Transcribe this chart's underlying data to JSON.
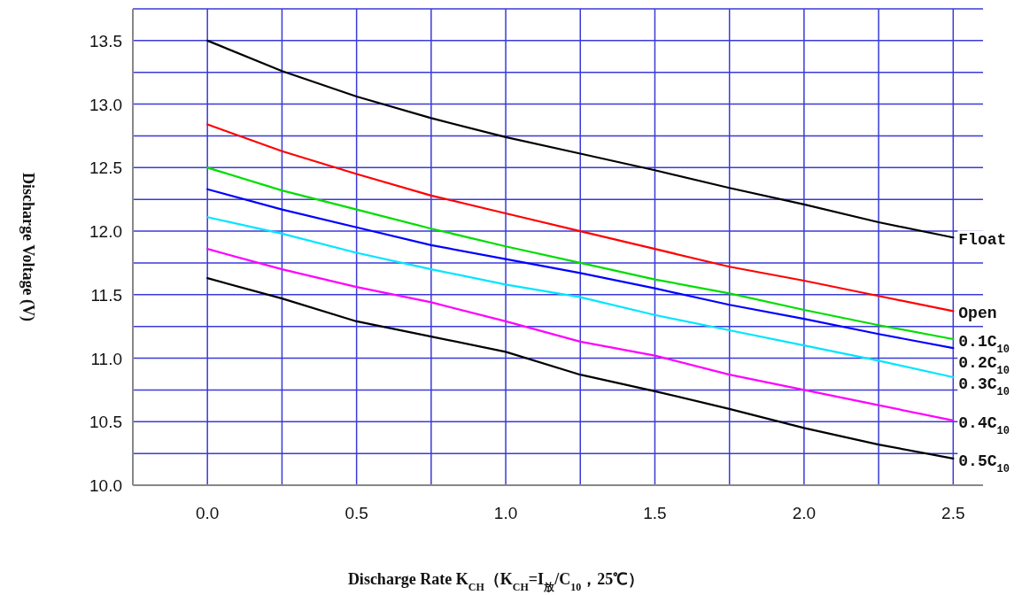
{
  "chart_data": {
    "type": "line",
    "xlabel": "Discharge Rate  K$_{CH}$（K$_{CH}$=I$_{放}$/C$_{10}$，25℃）",
    "ylabel": "Discharge Voltage  (V)",
    "x": [
      0,
      0.25,
      0.5,
      0.75,
      1.0,
      1.25,
      1.5,
      1.75,
      2.0,
      2.25,
      2.5
    ],
    "xlim": [
      -0.25,
      2.6
    ],
    "ylim": [
      10.0,
      13.75
    ],
    "xticks": [
      {
        "value": 0,
        "label": "0.0"
      },
      {
        "value": 0.25,
        "label": null
      },
      {
        "value": 0.5,
        "label": "0.5"
      },
      {
        "value": 0.75,
        "label": null
      },
      {
        "value": 1,
        "label": "1.0"
      },
      {
        "value": 1.25,
        "label": null
      },
      {
        "value": 1.5,
        "label": "1.5"
      },
      {
        "value": 1.75,
        "label": null
      },
      {
        "value": 2,
        "label": "2.0"
      },
      {
        "value": 2.25,
        "label": null
      },
      {
        "value": 2.5,
        "label": "2.5"
      }
    ],
    "yticks": [
      {
        "value": 10,
        "label": "10.0"
      },
      {
        "value": 10.25,
        "label": null
      },
      {
        "value": 10.5,
        "label": "10.5"
      },
      {
        "value": 10.75,
        "label": null
      },
      {
        "value": 11,
        "label": "11.0"
      },
      {
        "value": 11.25,
        "label": null
      },
      {
        "value": 11.5,
        "label": "11.5"
      },
      {
        "value": 11.75,
        "label": null
      },
      {
        "value": 12,
        "label": "12.0"
      },
      {
        "value": 12.25,
        "label": null
      },
      {
        "value": 12.5,
        "label": "12.5"
      },
      {
        "value": 12.75,
        "label": null
      },
      {
        "value": 13,
        "label": "13.0"
      },
      {
        "value": 13.25,
        "label": null
      },
      {
        "value": 13.5,
        "label": "13.5"
      }
    ],
    "grid": true,
    "marker": "none",
    "line_style": "solid",
    "series": [
      {
        "name": "Float",
        "color": "#000000",
        "values": [
          13.5,
          13.26,
          13.06,
          12.89,
          12.74,
          12.61,
          12.48,
          12.34,
          12.21,
          12.07,
          11.95
        ]
      },
      {
        "name": "Open",
        "color": "#ff0000",
        "values": [
          12.84,
          12.63,
          12.45,
          12.28,
          12.14,
          12.0,
          11.86,
          11.72,
          11.61,
          11.49,
          11.37
        ]
      },
      {
        "name": "0.1C$_{10}$",
        "color": "#00dd00",
        "values": [
          12.5,
          12.32,
          12.17,
          12.02,
          11.88,
          11.75,
          11.62,
          11.51,
          11.38,
          11.26,
          11.15
        ]
      },
      {
        "name": "0.2C$_{10}$",
        "color": "#0000ff",
        "values": [
          12.33,
          12.17,
          12.03,
          11.89,
          11.78,
          11.67,
          11.55,
          11.42,
          11.31,
          11.19,
          11.08
        ]
      },
      {
        "name": "0.3C$_{10}$",
        "color": "#00e5ff",
        "values": [
          12.11,
          11.98,
          11.83,
          11.7,
          11.58,
          11.48,
          11.34,
          11.22,
          11.1,
          10.98,
          10.85
        ]
      },
      {
        "name": "0.4C$_{10}$",
        "color": "#ff00ff",
        "values": [
          11.86,
          11.7,
          11.56,
          11.44,
          11.29,
          11.13,
          11.02,
          10.87,
          10.75,
          10.63,
          10.51
        ]
      },
      {
        "name": "0.5C$_{10}$",
        "color": "#000000",
        "values": [
          11.63,
          11.47,
          11.29,
          11.17,
          11.05,
          10.87,
          10.74,
          10.6,
          10.45,
          10.32,
          10.21
        ]
      }
    ]
  }
}
